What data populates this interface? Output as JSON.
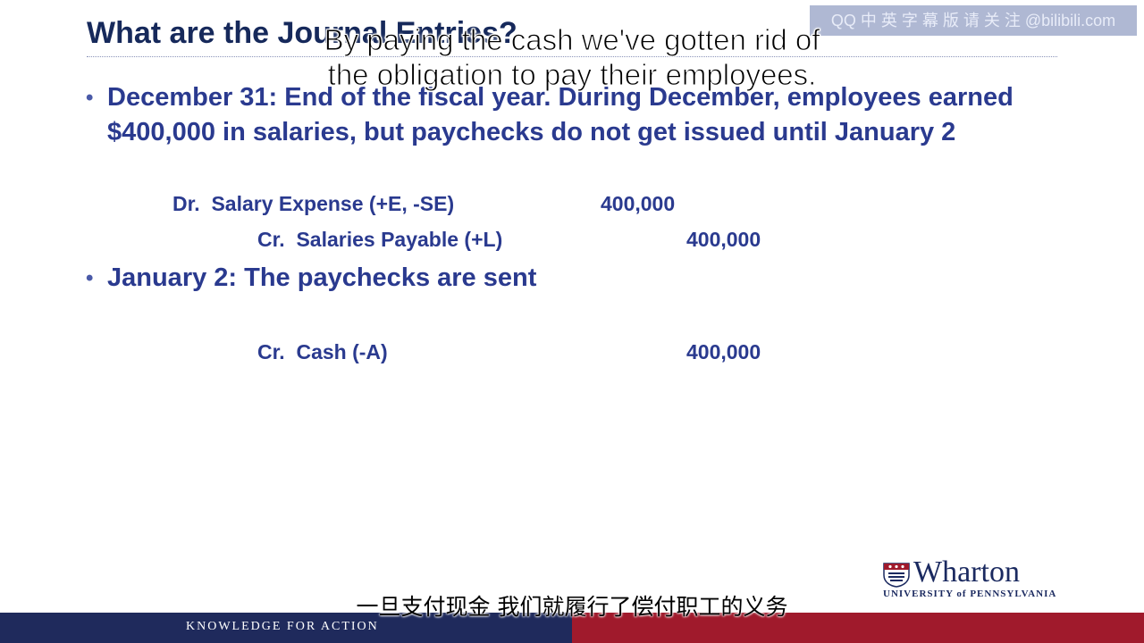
{
  "slide": {
    "title": "What are the Journal Entries?",
    "bullets": [
      {
        "marker": "•",
        "text": "December 31: End of the fiscal year.  During December, employees earned $400,000 in salaries, but paychecks do not get issued until January 2"
      },
      {
        "marker": "•",
        "text": "January 2: The paychecks are sent"
      }
    ],
    "entry1": {
      "debit_label": "Dr.  Salary Expense (+E, -SE)",
      "debit_amount": "400,000",
      "credit_label": "Cr.  Salaries Payable (+L)",
      "credit_amount": "400,000"
    },
    "entry2": {
      "credit_label": "Cr.  Cash (-A)",
      "credit_amount": "400,000"
    }
  },
  "subtitles": {
    "english_line1": "By paying the cash we've gotten rid of",
    "english_line2": "the obligation to pay their employees.",
    "chinese": "一旦支付现金 我们就履行了偿付职工的义务"
  },
  "watermark": "QQ 中 英 字 幕 版 请 关 注 @bilibili.com",
  "branding": {
    "wordmark": "Wharton",
    "university": "UNIVERSITY of PENNSYLVANIA",
    "tagline": "KNOWLEDGE FOR ACTION"
  },
  "colors": {
    "title": "#16295b",
    "body": "#2a3a8f",
    "footer_navy": "#1f2a5c",
    "footer_red": "#a01a2c"
  }
}
